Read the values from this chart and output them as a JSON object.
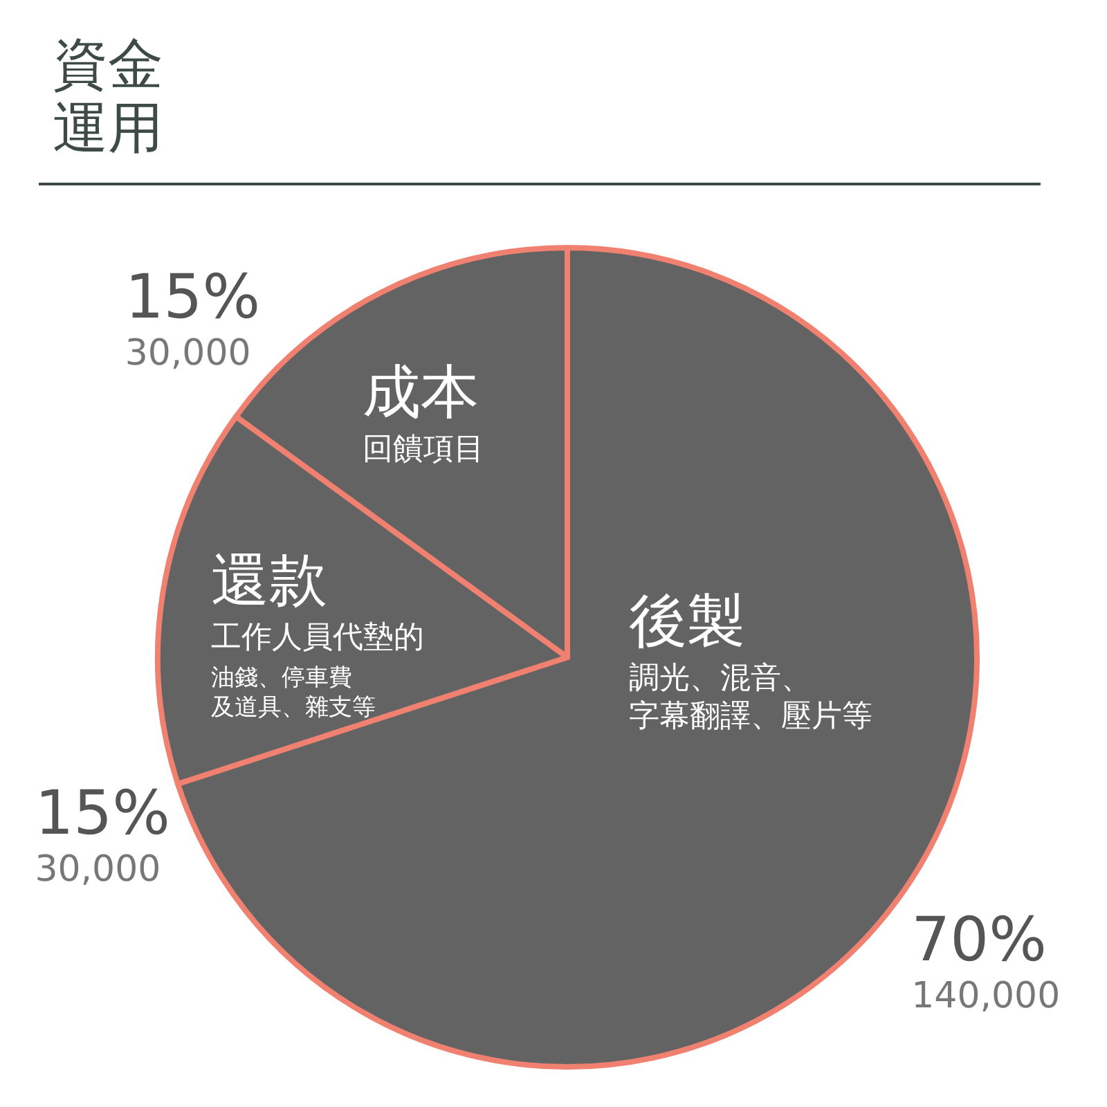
{
  "chart_data": {
    "type": "pie",
    "title": "資金運用",
    "categories": [
      "後製",
      "還款",
      "成本"
    ],
    "values": [
      140000,
      30000,
      30000
    ],
    "value_labels": [
      "70%\n140,000",
      "15%\n30,000",
      "15%\n30,000"
    ],
    "colors": [
      "#636363",
      "#636363",
      "#636363"
    ],
    "annotations": [
      "調光、混音、字幕翻譯、壓片等",
      "工作人員代墊的",
      "油錢、停車費及道具、雜支等",
      "回饋項目"
    ]
  }
}
